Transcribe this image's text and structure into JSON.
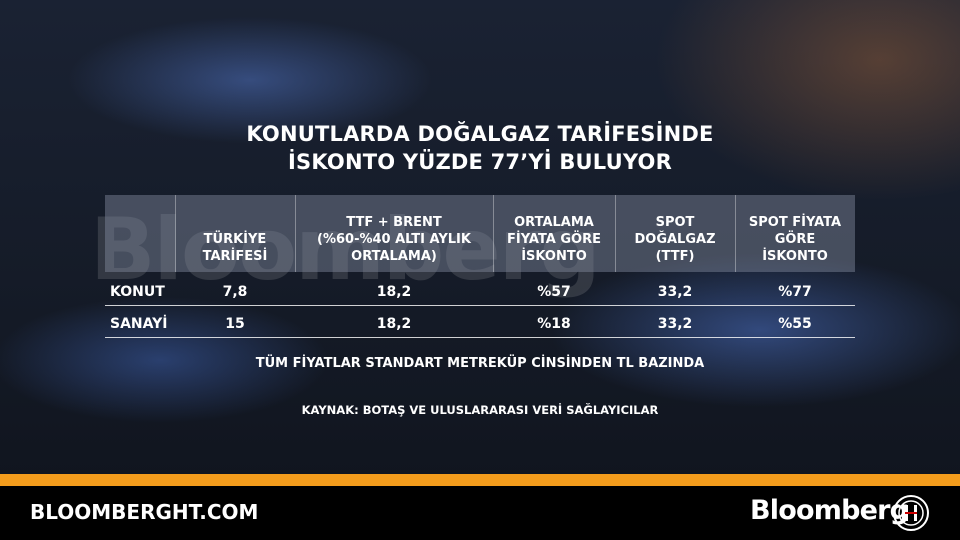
{
  "header": {
    "title_lines": [
      "KONUTLARDA DOĞALGAZ TARİFESİNDE",
      "İSKONTO YÜZDE 77’Yİ BULUYOR"
    ]
  },
  "watermark": "Bloomberg",
  "table": {
    "columns": [
      [
        "TÜRKİYE",
        "TARİFESİ"
      ],
      [
        "TTF + BRENT",
        "(%60-%40 ALTI AYLIK",
        "ORTALAMA)"
      ],
      [
        "ORTALAMA",
        "FİYATA GÖRE",
        "İSKONTO"
      ],
      [
        "SPOT",
        "DOĞALGAZ",
        "(TTF)"
      ],
      [
        "SPOT FİYATA",
        "GÖRE",
        "İSKONTO"
      ]
    ],
    "rows": [
      [
        "KONUT",
        "7,8",
        "18,2",
        "%57",
        "33,2",
        "%77"
      ],
      [
        "SANAYİ",
        "15",
        "18,2",
        "%18",
        "33,2",
        "%55"
      ]
    ]
  },
  "note": "TÜM FİYATLAR STANDART METREKÜP CİNSİNDEN TL BAZINDA",
  "source": "KAYNAK: BOTAŞ VE ULUSLARARASI VERİ SAĞLAYICILAR",
  "footer": {
    "site": "BLOOMBERGHT.COM",
    "brand": "Bloomberg"
  }
}
